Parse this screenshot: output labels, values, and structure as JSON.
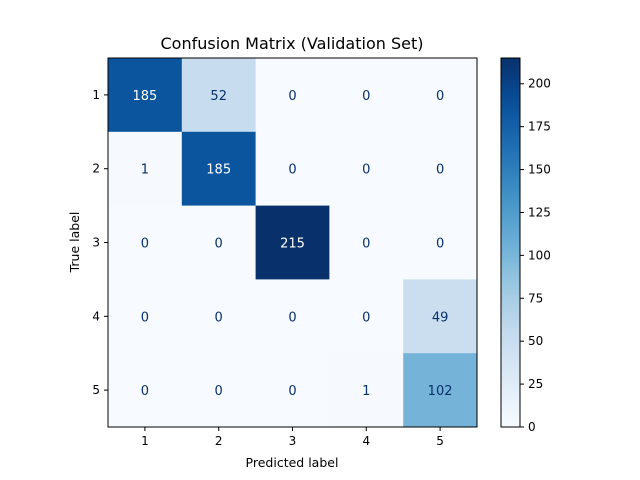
{
  "chart_data": {
    "type": "heatmap",
    "title": "Confusion Matrix (Validation Set)",
    "xlabel": "Predicted label",
    "ylabel": "True label",
    "x_categories": [
      "1",
      "2",
      "3",
      "4",
      "5"
    ],
    "y_categories": [
      "1",
      "2",
      "3",
      "4",
      "5"
    ],
    "values": [
      [
        185,
        52,
        0,
        0,
        0
      ],
      [
        1,
        185,
        0,
        0,
        0
      ],
      [
        0,
        0,
        215,
        0,
        0
      ],
      [
        0,
        0,
        0,
        0,
        49
      ],
      [
        0,
        0,
        0,
        1,
        102
      ]
    ],
    "colormap": "Blues",
    "vmin": 0,
    "vmax": 215,
    "colorbar_ticks": [
      "0",
      "25",
      "50",
      "75",
      "100",
      "125",
      "150",
      "175",
      "200"
    ],
    "text_color_light": "#ffffff",
    "text_color_dark": "#08306b"
  }
}
